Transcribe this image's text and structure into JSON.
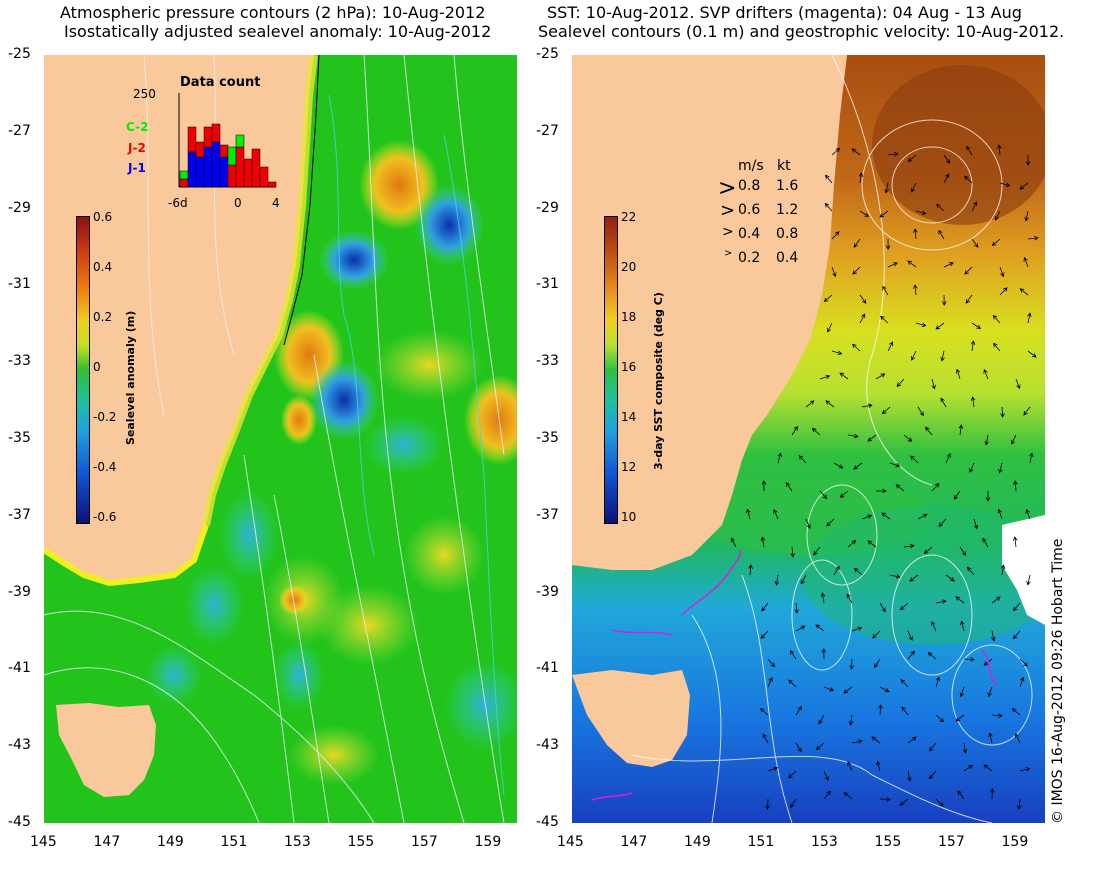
{
  "left_panel": {
    "title_line1": "Atmospheric pressure contours (2 hPa): 10-Aug-2012",
    "title_line2": "Isostatically adjusted sealevel anomaly: 10-Aug-2012",
    "colorbar_label": "Sealevel anomaly (m)",
    "colorbar_ticks": [
      "0.6",
      "0.4",
      "0.2",
      "0",
      "-0.2",
      "-0.4",
      "-0.6"
    ],
    "inset": {
      "title": "Data count",
      "ymax": "250",
      "xticks": [
        "-6d",
        "0",
        "4"
      ],
      "satellites": [
        {
          "name": "C-2",
          "color": "#00ee00"
        },
        {
          "name": "J-2",
          "color": "#ee0000"
        },
        {
          "name": "J-1",
          "color": "#0000ee"
        }
      ]
    }
  },
  "right_panel": {
    "title_line1": "SST: 10-Aug-2012. SVP drifters (magenta): 04 Aug - 13 Aug",
    "title_line2": "Sealevel contours (0.1 m) and geostrophic velocity: 10-Aug-2012.",
    "colorbar_label": "3-day SST composite (deg C)",
    "colorbar_ticks": [
      "22",
      "20",
      "18",
      "16",
      "14",
      "12",
      "10"
    ],
    "velocity_legend": {
      "header_ms": "m/s",
      "header_kt": "kt",
      "rows": [
        {
          "ms": "0.8",
          "kt": "1.6"
        },
        {
          "ms": "0.6",
          "kt": "1.2"
        },
        {
          "ms": "0.4",
          "kt": "0.8"
        },
        {
          "ms": "0.2",
          "kt": "0.4"
        }
      ]
    }
  },
  "axes": {
    "lat_ticks": [
      "-25",
      "-27",
      "-29",
      "-31",
      "-33",
      "-35",
      "-37",
      "-39",
      "-41",
      "-43",
      "-45"
    ],
    "lon_ticks": [
      "145",
      "147",
      "149",
      "151",
      "153",
      "155",
      "157",
      "159"
    ]
  },
  "credit": "© IMOS 16-Aug-2012 09:26 Hobart Time",
  "colors": {
    "land": "#f9c99b",
    "ocean_green": "#22c41c",
    "warm": "#b45a10",
    "cool": "#1e9be0"
  }
}
